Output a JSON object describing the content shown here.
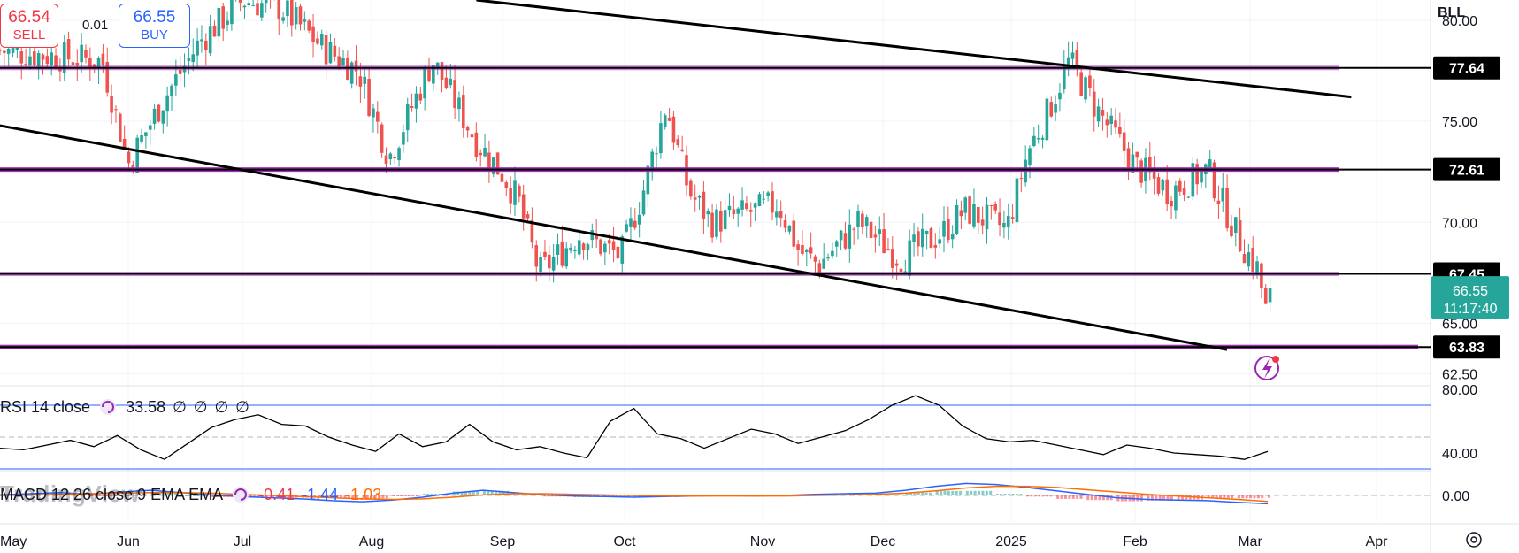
{
  "header": {
    "sell_price": "66.54",
    "sell_label": "SELL",
    "spread": "0.01",
    "buy_price": "66.55",
    "buy_label": "BUY",
    "ticker": "BLL"
  },
  "current": {
    "price_label": "66.55",
    "countdown": "11:17:40"
  },
  "watermark": "TradingView",
  "rsi": {
    "label": "RSI 14 close",
    "value": "33.58",
    "na": [
      "∅",
      "∅",
      "∅",
      "∅"
    ]
  },
  "macd": {
    "label": "MACD 12 26 close 9 EMA EMA",
    "values": [
      "-0.41",
      "-1.44",
      "-1.03"
    ]
  },
  "colors": {
    "up": "#26a69a",
    "down": "#ef5350",
    "level": "#9c27b0",
    "trend": "#000000",
    "rsi_band": "#2962ff",
    "macd_line": "#2962ff",
    "signal_line": "#ff6d00"
  },
  "chart_data": {
    "type": "candlestick",
    "symbol": "BLL",
    "interval": "1D",
    "price_axis": {
      "ylim": [
        62.0,
        81.0
      ],
      "ticks": [
        "80.00",
        "77.64",
        "75.00",
        "72.61",
        "70.00",
        "67.45",
        "66.55",
        "65.00",
        "63.83",
        "62.50"
      ]
    },
    "x_axis": {
      "ticks": [
        "May",
        "Jun",
        "Jul",
        "Aug",
        "Sep",
        "Oct",
        "Nov",
        "Dec",
        "2025",
        "Feb",
        "Mar",
        "Apr"
      ]
    },
    "horizontal_levels": [
      {
        "value": 77.64,
        "label": "77.64"
      },
      {
        "value": 72.61,
        "label": "72.61"
      },
      {
        "value": 67.45,
        "label": "67.45"
      },
      {
        "value": 63.83,
        "label": "63.83"
      }
    ],
    "trendlines": [
      {
        "from": [
          "Aug 25",
          81.0
        ],
        "to": [
          "Mar 25",
          76.2
        ]
      },
      {
        "from": [
          "May 1",
          74.8
        ],
        "to": [
          "Feb 25",
          63.7
        ]
      }
    ],
    "close_path": [
      [
        "May 1",
        78.5
      ],
      [
        "May 15",
        78.2
      ],
      [
        "May 25",
        78.0
      ],
      [
        "Jun 1",
        72.9
      ],
      [
        "Jun 10",
        76.0
      ],
      [
        "Jun 20",
        79.0
      ],
      [
        "Jul 1",
        81.0
      ],
      [
        "Jul 10",
        80.6
      ],
      [
        "Jul 20",
        78.6
      ],
      [
        "Jul 28",
        77.5
      ],
      [
        "Aug 5",
        73.2
      ],
      [
        "Aug 10",
        75.6
      ],
      [
        "Aug 15",
        78.0
      ],
      [
        "Aug 25",
        74.0
      ],
      [
        "Sep 1",
        72.4
      ],
      [
        "Sep 5",
        71.0
      ],
      [
        "Sep 10",
        67.5
      ],
      [
        "Sep 20",
        69.4
      ],
      [
        "Sep 30",
        68.3
      ],
      [
        "Oct 5",
        71.5
      ],
      [
        "Oct 10",
        75.8
      ],
      [
        "Oct 15",
        71.5
      ],
      [
        "Oct 20",
        70.0
      ],
      [
        "Oct 28",
        70.5
      ],
      [
        "Nov 5",
        70.9
      ],
      [
        "Nov 10",
        68.6
      ],
      [
        "Nov 15",
        67.9
      ],
      [
        "Nov 25",
        70.0
      ],
      [
        "Dec 5",
        68.2
      ],
      [
        "Dec 15",
        69.5
      ],
      [
        "Dec 20",
        70.6
      ],
      [
        "Dec 30",
        69.7
      ],
      [
        "Jan 5",
        73.5
      ],
      [
        "Jan 10",
        75.5
      ],
      [
        "Jan 15",
        78.0
      ],
      [
        "Jan 22",
        75.5
      ],
      [
        "Feb 1",
        72.8
      ],
      [
        "Feb 10",
        71.5
      ],
      [
        "Feb 20",
        72.6
      ],
      [
        "Feb 28",
        69.2
      ],
      [
        "Mar 3",
        67.6
      ],
      [
        "Mar 5",
        65.3
      ],
      [
        "Mar 6",
        66.55
      ]
    ],
    "rsi": {
      "ylim": [
        30,
        80
      ],
      "ticks": [
        "80.00",
        "40.00"
      ],
      "bands": [
        70,
        30
      ],
      "midline": 50,
      "values": [
        43,
        42,
        45,
        48,
        44,
        51,
        42,
        36,
        46,
        56,
        61,
        64,
        58,
        57,
        50,
        45,
        41,
        52,
        44,
        47,
        58,
        47,
        42,
        44,
        40,
        37,
        60,
        68,
        52,
        49,
        43,
        49,
        55,
        52,
        46,
        50,
        54,
        61,
        70,
        76,
        70,
        57,
        49,
        47,
        48,
        45,
        42,
        39,
        45,
        43,
        40,
        39,
        38,
        36,
        41
      ]
    },
    "macd": {
      "ticks": [
        "0.00"
      ],
      "macd_line": [
        0.1,
        0.3,
        0.5,
        0.2,
        0.6,
        0.9,
        0.5,
        0.1,
        -0.2,
        -0.4,
        -0.6,
        -0.9,
        -1.1,
        -0.8,
        -0.3,
        0.4,
        0.9,
        0.5,
        0.1,
        -0.1,
        -0.2,
        -0.3,
        -0.2,
        -0.1,
        0.0,
        -0.1,
        0.0,
        0.2,
        0.3,
        0.4,
        0.9,
        1.6,
        2.1,
        1.9,
        1.4,
        0.8,
        0.2,
        -0.4,
        -0.7,
        -0.8,
        -0.9,
        -1.2,
        -1.44
      ],
      "signal_line": [
        0.0,
        0.1,
        0.2,
        0.3,
        0.4,
        0.5,
        0.5,
        0.4,
        0.2,
        0.0,
        -0.2,
        -0.4,
        -0.6,
        -0.7,
        -0.6,
        -0.3,
        0.1,
        0.3,
        0.3,
        0.2,
        0.1,
        0.0,
        -0.1,
        -0.1,
        -0.1,
        -0.1,
        -0.1,
        0.0,
        0.1,
        0.2,
        0.4,
        0.8,
        1.3,
        1.6,
        1.6,
        1.4,
        1.0,
        0.6,
        0.2,
        -0.1,
        -0.4,
        -0.7,
        -1.03
      ],
      "histogram_last": -0.41
    }
  }
}
